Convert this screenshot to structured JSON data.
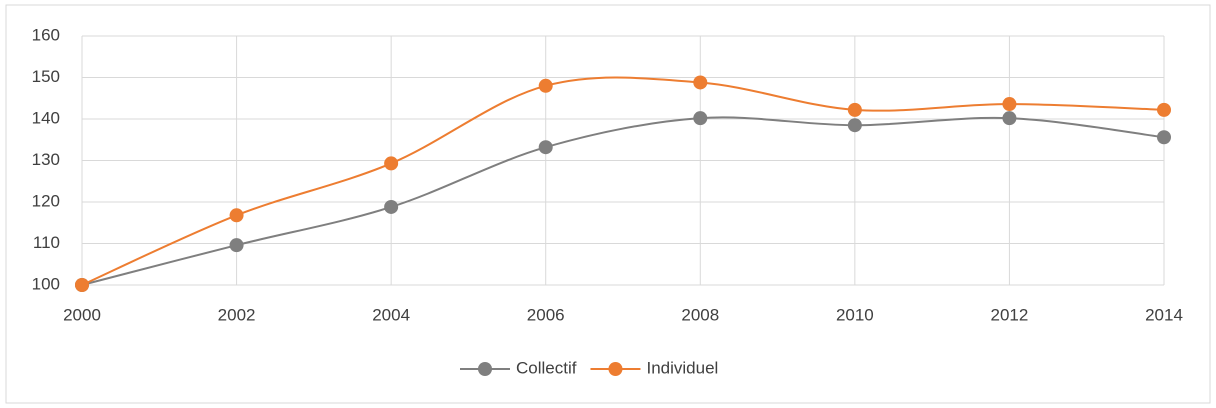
{
  "chart_data": {
    "type": "line",
    "x": [
      2000,
      2002,
      2004,
      2006,
      2008,
      2010,
      2012,
      2014
    ],
    "series": [
      {
        "name": "Collectif",
        "color": "#7f7f7f",
        "values": [
          100,
          109.6,
          118.8,
          133.2,
          140.2,
          138.5,
          140.2,
          135.6
        ]
      },
      {
        "name": "Individuel",
        "color": "#ed7d31",
        "values": [
          100,
          116.8,
          129.3,
          148,
          148.8,
          142.2,
          143.6,
          142.2
        ]
      }
    ],
    "xlim": [
      2000,
      2014
    ],
    "xticks": [
      2000,
      2002,
      2004,
      2006,
      2008,
      2010,
      2012,
      2014
    ],
    "ylim": [
      100,
      160
    ],
    "yticks": [
      100,
      110,
      120,
      130,
      140,
      150,
      160
    ],
    "grid": true,
    "smooth": true,
    "legend": "bottom"
  }
}
